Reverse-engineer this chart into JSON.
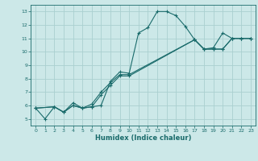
{
  "title": "",
  "xlabel": "Humidex (Indice chaleur)",
  "bg_color": "#cce8e8",
  "grid_color": "#aad0d0",
  "line_color": "#1a6b6b",
  "xlim": [
    -0.5,
    23.5
  ],
  "ylim": [
    4.5,
    13.5
  ],
  "xticks": [
    0,
    1,
    2,
    3,
    4,
    5,
    6,
    7,
    8,
    9,
    10,
    11,
    12,
    13,
    14,
    15,
    16,
    17,
    18,
    19,
    20,
    21,
    22,
    23
  ],
  "yticks": [
    5,
    6,
    7,
    8,
    9,
    10,
    11,
    12,
    13
  ],
  "line1_x": [
    0,
    1,
    2,
    3,
    4,
    5,
    6,
    7,
    8,
    9,
    10,
    11,
    12,
    13,
    14,
    15,
    16,
    17,
    18,
    19,
    20,
    21,
    22,
    23
  ],
  "line1_y": [
    5.8,
    5.0,
    5.9,
    5.5,
    6.2,
    5.8,
    5.9,
    6.0,
    7.8,
    8.5,
    8.4,
    11.4,
    11.8,
    13.0,
    13.0,
    12.7,
    11.9,
    10.9,
    10.2,
    10.3,
    11.4,
    11.0,
    11.0,
    11.0
  ],
  "line2_x": [
    0,
    2,
    3,
    4,
    5,
    6,
    7,
    8,
    9,
    10,
    17,
    18,
    19,
    20,
    21,
    22,
    23
  ],
  "line2_y": [
    5.8,
    5.9,
    5.5,
    6.0,
    5.8,
    6.1,
    7.0,
    7.7,
    8.3,
    8.3,
    10.9,
    10.2,
    10.2,
    10.2,
    11.0,
    11.0,
    11.0
  ],
  "line3_x": [
    0,
    2,
    3,
    4,
    5,
    6,
    7,
    8,
    9,
    10,
    17,
    18,
    19,
    20,
    21,
    22,
    23
  ],
  "line3_y": [
    5.8,
    5.9,
    5.5,
    6.0,
    5.8,
    5.9,
    6.8,
    7.5,
    8.2,
    8.2,
    10.9,
    10.2,
    10.2,
    10.2,
    11.0,
    11.0,
    11.0
  ]
}
